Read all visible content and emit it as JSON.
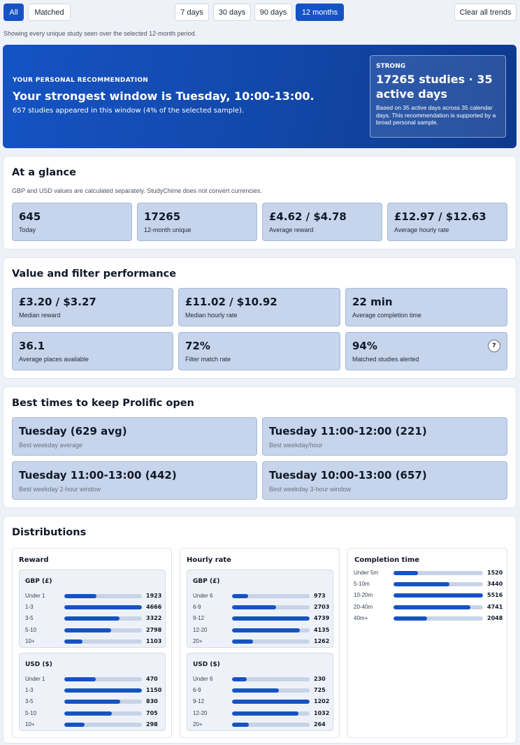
{
  "filters": {
    "scope": [
      {
        "label": "All",
        "active": true
      },
      {
        "label": "Matched",
        "active": false
      }
    ],
    "periods": [
      {
        "label": "7 days",
        "active": false
      },
      {
        "label": "30 days",
        "active": false
      },
      {
        "label": "90 days",
        "active": false
      },
      {
        "label": "12 months",
        "active": true
      }
    ],
    "clear_label": "Clear all trends",
    "note": "Showing every unique study seen over the selected 12-month period."
  },
  "recommendation": {
    "kicker": "YOUR PERSONAL RECOMMENDATION",
    "title": "Your strongest window is Tuesday, 10:00-13:00.",
    "subtitle": "657 studies appeared in this window (4% of the selected sample).",
    "badge": {
      "tag": "STRONG",
      "headline": "17265 studies · 35 active days",
      "note": "Based on 35 active days across 35 calendar days. This recommendation is supported by a broad personal sample."
    }
  },
  "at_a_glance": {
    "title": "At a glance",
    "note": "GBP and USD values are calculated separately. StudyChime does not convert currencies.",
    "cards": [
      {
        "value": "645",
        "label": "Today"
      },
      {
        "value": "17265",
        "label": "12-month unique"
      },
      {
        "value": "£4.62 / $4.78",
        "label": "Average reward"
      },
      {
        "value": "£12.97 / $12.63",
        "label": "Average hourly rate"
      }
    ]
  },
  "performance": {
    "title": "Value and filter performance",
    "cards": [
      {
        "value": "£3.20 / $3.27",
        "label": "Median reward"
      },
      {
        "value": "£11.02 / $10.92",
        "label": "Median hourly rate"
      },
      {
        "value": "22 min",
        "label": "Average completion time"
      },
      {
        "value": "36.1",
        "label": "Average places available"
      },
      {
        "value": "72%",
        "label": "Filter match rate"
      },
      {
        "value": "94%",
        "label": "Matched studies alerted"
      }
    ],
    "help_label": "?"
  },
  "best_times": {
    "title": "Best times to keep Prolific open",
    "cards": [
      {
        "value": "Tuesday (629 avg)",
        "label": "Best weekday average"
      },
      {
        "value": "Tuesday 11:00-12:00 (221)",
        "label": "Best weekday/hour"
      },
      {
        "value": "Tuesday 11:00-13:00 (442)",
        "label": "Best weekday 2-hour window"
      },
      {
        "value": "Tuesday 10:00-13:00 (657)",
        "label": "Best weekday 3-hour window"
      }
    ]
  },
  "distributions": {
    "title": "Distributions",
    "reward": {
      "title": "Reward",
      "groups": [
        {
          "title": "GBP (£)",
          "rows": [
            {
              "label": "Under 1",
              "value": 1923
            },
            {
              "label": "1-3",
              "value": 4666
            },
            {
              "label": "3-5",
              "value": 3322
            },
            {
              "label": "5-10",
              "value": 2798
            },
            {
              "label": "10+",
              "value": 1103
            }
          ]
        },
        {
          "title": "USD ($)",
          "rows": [
            {
              "label": "Under 1",
              "value": 470
            },
            {
              "label": "1-3",
              "value": 1150
            },
            {
              "label": "3-5",
              "value": 830
            },
            {
              "label": "5-10",
              "value": 705
            },
            {
              "label": "10+",
              "value": 298
            }
          ]
        }
      ]
    },
    "hourly": {
      "title": "Hourly rate",
      "groups": [
        {
          "title": "GBP (£)",
          "rows": [
            {
              "label": "Under 6",
              "value": 973
            },
            {
              "label": "6-9",
              "value": 2703
            },
            {
              "label": "9-12",
              "value": 4739
            },
            {
              "label": "12-20",
              "value": 4135
            },
            {
              "label": "20+",
              "value": 1262
            }
          ]
        },
        {
          "title": "USD ($)",
          "rows": [
            {
              "label": "Under 6",
              "value": 230
            },
            {
              "label": "6-9",
              "value": 725
            },
            {
              "label": "9-12",
              "value": 1202
            },
            {
              "label": "12-20",
              "value": 1032
            },
            {
              "label": "20+",
              "value": 264
            }
          ]
        }
      ]
    },
    "completion": {
      "title": "Completion time",
      "rows": [
        {
          "label": "Under 5m",
          "value": 1520
        },
        {
          "label": "5-10m",
          "value": 3440
        },
        {
          "label": "10-20m",
          "value": 5516
        },
        {
          "label": "20-40m",
          "value": 4741
        },
        {
          "label": "40m+",
          "value": 2048
        }
      ]
    }
  },
  "colors": {
    "accent": "#1553c4",
    "card_bg": "#c6d5ec",
    "track": "#c7d3e8"
  }
}
